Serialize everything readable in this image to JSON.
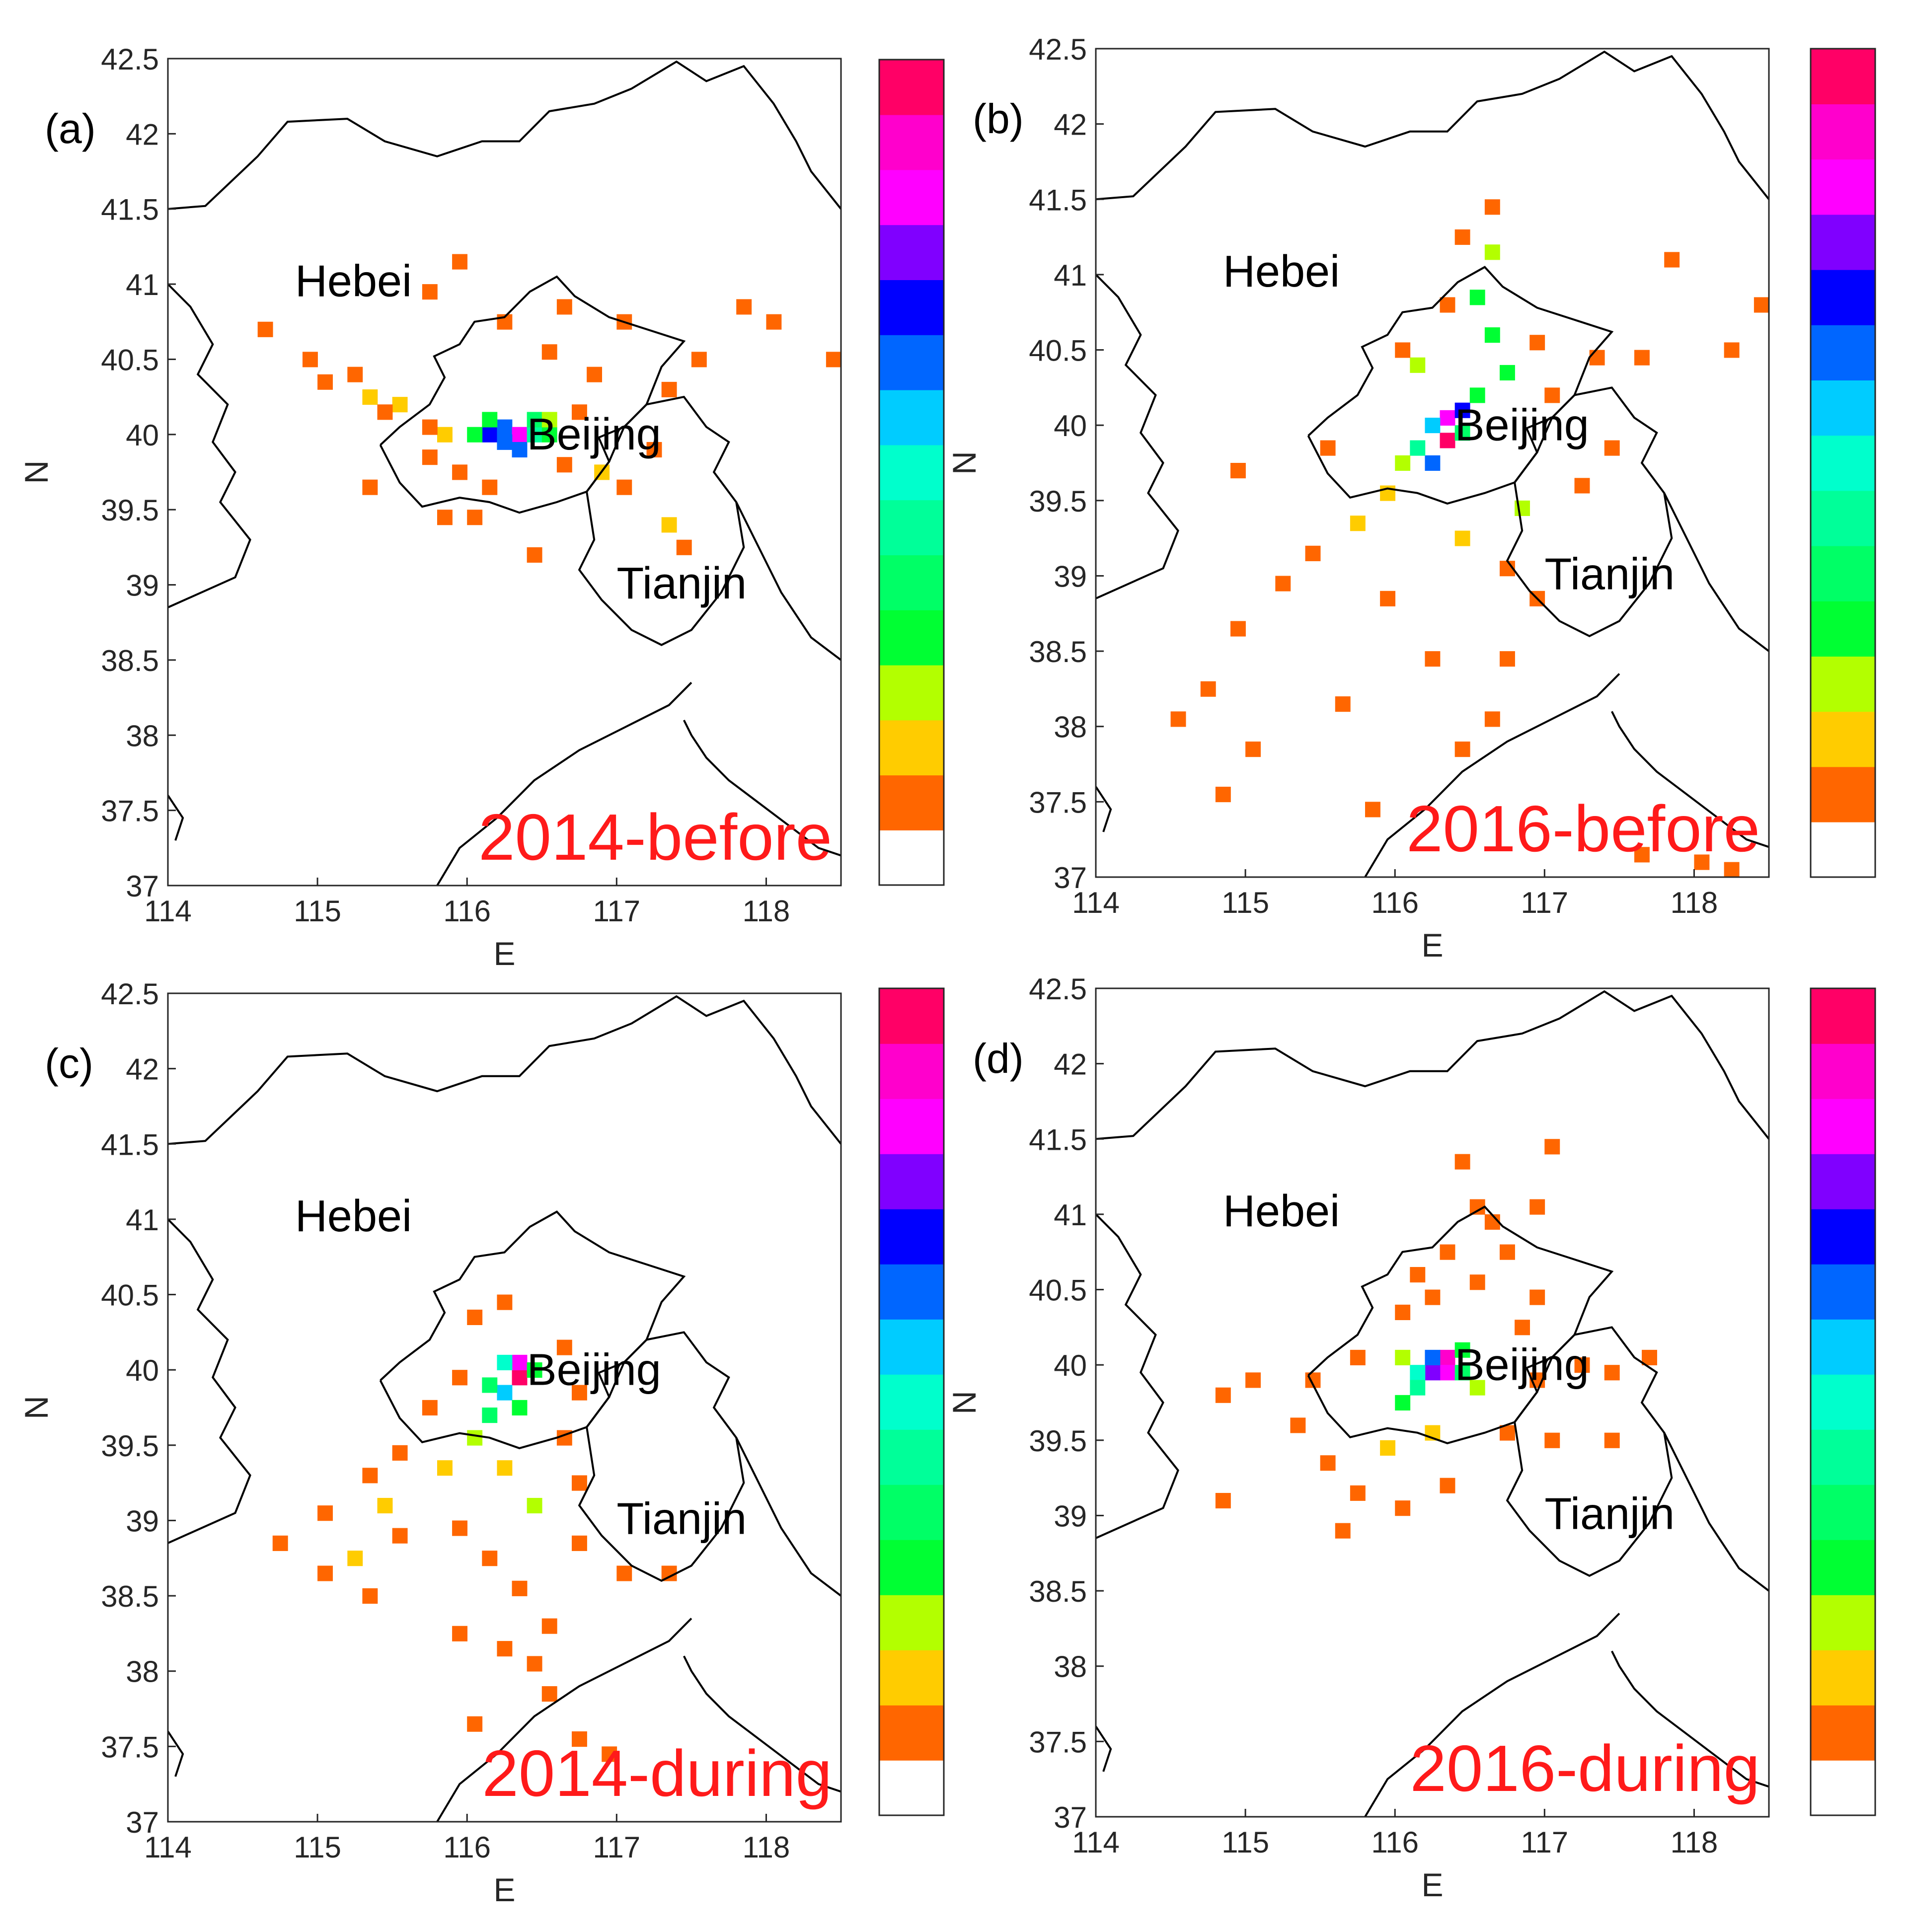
{
  "figure": {
    "xlabel": "E",
    "ylabel": "N",
    "x_ticks": [
      "114",
      "115",
      "116",
      "117",
      "118"
    ],
    "y_ticks": [
      "37",
      "37.5",
      "38",
      "38.5",
      "39",
      "39.5",
      "40",
      "40.5",
      "41",
      "41.5",
      "42",
      "42.5"
    ],
    "xlim": [
      114,
      118.5
    ],
    "ylim": [
      37,
      42.5
    ],
    "colorbar_colors": [
      "#ffffff",
      "#ff6600",
      "#ffcc00",
      "#b3ff00",
      "#00ff33",
      "#00ff66",
      "#00ff99",
      "#00ffcc",
      "#00ccff",
      "#0066ff",
      "#0000ff",
      "#8000ff",
      "#ff00ff",
      "#ff00cc",
      "#ff0066"
    ],
    "map_color": "#000000",
    "regions": [
      "Hebei",
      "Beijing",
      "Tianjin"
    ]
  },
  "panels": [
    {
      "letter": "(a)",
      "period_label": "2014-before",
      "grid_cells": [
        {
          "lon": 116.15,
          "lat": 40.0,
          "level": 10
        },
        {
          "lon": 116.25,
          "lat": 40.05,
          "level": 9
        },
        {
          "lon": 116.35,
          "lat": 40.0,
          "level": 12
        },
        {
          "lon": 116.25,
          "lat": 39.95,
          "level": 9
        },
        {
          "lon": 116.35,
          "lat": 39.9,
          "level": 9
        },
        {
          "lon": 116.45,
          "lat": 40.0,
          "level": 6
        },
        {
          "lon": 116.45,
          "lat": 40.1,
          "level": 5
        },
        {
          "lon": 116.55,
          "lat": 40.0,
          "level": 4
        },
        {
          "lon": 116.05,
          "lat": 40.0,
          "level": 4
        },
        {
          "lon": 116.15,
          "lat": 40.1,
          "level": 4
        },
        {
          "lon": 116.55,
          "lat": 40.1,
          "level": 3
        },
        {
          "lon": 115.85,
          "lat": 40.0,
          "level": 2
        },
        {
          "lon": 115.55,
          "lat": 40.2,
          "level": 2
        },
        {
          "lon": 115.35,
          "lat": 40.25,
          "level": 2
        },
        {
          "lon": 116.9,
          "lat": 39.75,
          "level": 2
        },
        {
          "lon": 117.35,
          "lat": 39.4,
          "level": 2
        },
        {
          "lon": 114.65,
          "lat": 40.7,
          "level": 1
        },
        {
          "lon": 114.95,
          "lat": 40.5,
          "level": 1
        },
        {
          "lon": 115.05,
          "lat": 40.35,
          "level": 1
        },
        {
          "lon": 115.25,
          "lat": 40.4,
          "level": 1
        },
        {
          "lon": 115.45,
          "lat": 40.15,
          "level": 1
        },
        {
          "lon": 115.75,
          "lat": 40.05,
          "level": 1
        },
        {
          "lon": 115.75,
          "lat": 39.85,
          "level": 1
        },
        {
          "lon": 115.95,
          "lat": 39.75,
          "level": 1
        },
        {
          "lon": 116.15,
          "lat": 39.65,
          "level": 1
        },
        {
          "lon": 116.65,
          "lat": 39.8,
          "level": 1
        },
        {
          "lon": 116.75,
          "lat": 40.15,
          "level": 1
        },
        {
          "lon": 116.85,
          "lat": 40.4,
          "level": 1
        },
        {
          "lon": 116.55,
          "lat": 40.55,
          "level": 1
        },
        {
          "lon": 116.65,
          "lat": 40.85,
          "level": 1
        },
        {
          "lon": 117.05,
          "lat": 40.75,
          "level": 1
        },
        {
          "lon": 117.35,
          "lat": 40.3,
          "level": 1
        },
        {
          "lon": 117.55,
          "lat": 40.5,
          "level": 1
        },
        {
          "lon": 117.85,
          "lat": 40.85,
          "level": 1
        },
        {
          "lon": 118.05,
          "lat": 40.75,
          "level": 1
        },
        {
          "lon": 118.45,
          "lat": 40.5,
          "level": 1
        },
        {
          "lon": 116.05,
          "lat": 39.45,
          "level": 1
        },
        {
          "lon": 115.85,
          "lat": 39.45,
          "level": 1
        },
        {
          "lon": 116.45,
          "lat": 39.2,
          "level": 1
        },
        {
          "lon": 117.45,
          "lat": 39.25,
          "level": 1
        },
        {
          "lon": 115.75,
          "lat": 40.95,
          "level": 1
        },
        {
          "lon": 115.95,
          "lat": 41.15,
          "level": 1
        },
        {
          "lon": 116.25,
          "lat": 40.75,
          "level": 1
        },
        {
          "lon": 115.35,
          "lat": 39.65,
          "level": 1
        },
        {
          "lon": 117.05,
          "lat": 39.65,
          "level": 1
        },
        {
          "lon": 117.25,
          "lat": 39.9,
          "level": 1
        }
      ]
    },
    {
      "letter": "(b)",
      "period_label": "2016-before",
      "grid_cells": [
        {
          "lon": 116.35,
          "lat": 40.05,
          "level": 12
        },
        {
          "lon": 116.35,
          "lat": 39.9,
          "level": 14
        },
        {
          "lon": 116.45,
          "lat": 40.1,
          "level": 10
        },
        {
          "lon": 116.25,
          "lat": 40.0,
          "level": 8
        },
        {
          "lon": 116.25,
          "lat": 39.75,
          "level": 9
        },
        {
          "lon": 116.15,
          "lat": 39.85,
          "level": 6
        },
        {
          "lon": 116.45,
          "lat": 39.95,
          "level": 5
        },
        {
          "lon": 116.55,
          "lat": 40.2,
          "level": 4
        },
        {
          "lon": 116.65,
          "lat": 40.6,
          "level": 4
        },
        {
          "lon": 116.55,
          "lat": 40.85,
          "level": 4
        },
        {
          "lon": 116.65,
          "lat": 41.15,
          "level": 3
        },
        {
          "lon": 116.75,
          "lat": 40.35,
          "level": 4
        },
        {
          "lon": 116.15,
          "lat": 40.4,
          "level": 3
        },
        {
          "lon": 116.05,
          "lat": 39.75,
          "level": 3
        },
        {
          "lon": 115.95,
          "lat": 39.55,
          "level": 2
        },
        {
          "lon": 116.85,
          "lat": 39.45,
          "level": 3
        },
        {
          "lon": 115.75,
          "lat": 39.35,
          "level": 2
        },
        {
          "lon": 116.45,
          "lat": 39.25,
          "level": 2
        },
        {
          "lon": 116.65,
          "lat": 41.45,
          "level": 1
        },
        {
          "lon": 116.45,
          "lat": 41.25,
          "level": 1
        },
        {
          "lon": 116.35,
          "lat": 40.8,
          "level": 1
        },
        {
          "lon": 116.05,
          "lat": 40.5,
          "level": 1
        },
        {
          "lon": 116.95,
          "lat": 40.55,
          "level": 1
        },
        {
          "lon": 117.05,
          "lat": 40.2,
          "level": 1
        },
        {
          "lon": 117.35,
          "lat": 40.45,
          "level": 1
        },
        {
          "lon": 117.65,
          "lat": 40.45,
          "level": 1
        },
        {
          "lon": 118.25,
          "lat": 40.5,
          "level": 1
        },
        {
          "lon": 118.45,
          "lat": 40.8,
          "level": 1
        },
        {
          "lon": 117.85,
          "lat": 41.1,
          "level": 1
        },
        {
          "lon": 117.45,
          "lat": 39.85,
          "level": 1
        },
        {
          "lon": 117.25,
          "lat": 39.6,
          "level": 1
        },
        {
          "lon": 116.75,
          "lat": 39.05,
          "level": 1
        },
        {
          "lon": 116.95,
          "lat": 38.85,
          "level": 1
        },
        {
          "lon": 116.75,
          "lat": 38.45,
          "level": 1
        },
        {
          "lon": 116.65,
          "lat": 38.05,
          "level": 1
        },
        {
          "lon": 116.45,
          "lat": 37.85,
          "level": 1
        },
        {
          "lon": 115.45,
          "lat": 39.15,
          "level": 1
        },
        {
          "lon": 115.25,
          "lat": 38.95,
          "level": 1
        },
        {
          "lon": 114.95,
          "lat": 38.65,
          "level": 1
        },
        {
          "lon": 114.75,
          "lat": 38.25,
          "level": 1
        },
        {
          "lon": 114.55,
          "lat": 38.05,
          "level": 1
        },
        {
          "lon": 114.85,
          "lat": 37.55,
          "level": 1
        },
        {
          "lon": 115.05,
          "lat": 37.85,
          "level": 1
        },
        {
          "lon": 115.95,
          "lat": 38.85,
          "level": 1
        },
        {
          "lon": 116.25,
          "lat": 38.45,
          "level": 1
        },
        {
          "lon": 115.85,
          "lat": 37.45,
          "level": 1
        },
        {
          "lon": 115.65,
          "lat": 38.15,
          "level": 1
        },
        {
          "lon": 114.95,
          "lat": 39.7,
          "level": 1
        },
        {
          "lon": 115.55,
          "lat": 39.85,
          "level": 1
        },
        {
          "lon": 118.25,
          "lat": 37.05,
          "level": 1
        },
        {
          "lon": 117.65,
          "lat": 37.15,
          "level": 1
        },
        {
          "lon": 118.05,
          "lat": 37.1,
          "level": 1
        }
      ]
    },
    {
      "letter": "(c)",
      "period_label": "2014-during",
      "grid_cells": [
        {
          "lon": 116.35,
          "lat": 39.95,
          "level": 14
        },
        {
          "lon": 116.35,
          "lat": 40.05,
          "level": 12
        },
        {
          "lon": 116.25,
          "lat": 40.05,
          "level": 7
        },
        {
          "lon": 116.25,
          "lat": 39.85,
          "level": 8
        },
        {
          "lon": 116.45,
          "lat": 40.0,
          "level": 4
        },
        {
          "lon": 116.15,
          "lat": 39.9,
          "level": 5
        },
        {
          "lon": 116.15,
          "lat": 39.7,
          "level": 5
        },
        {
          "lon": 116.35,
          "lat": 39.75,
          "level": 4
        },
        {
          "lon": 116.05,
          "lat": 39.55,
          "level": 3
        },
        {
          "lon": 115.85,
          "lat": 39.35,
          "level": 2
        },
        {
          "lon": 116.25,
          "lat": 39.35,
          "level": 2
        },
        {
          "lon": 116.45,
          "lat": 39.1,
          "level": 3
        },
        {
          "lon": 115.45,
          "lat": 39.1,
          "level": 2
        },
        {
          "lon": 115.25,
          "lat": 38.75,
          "level": 2
        },
        {
          "lon": 116.05,
          "lat": 40.35,
          "level": 1
        },
        {
          "lon": 116.25,
          "lat": 40.45,
          "level": 1
        },
        {
          "lon": 116.65,
          "lat": 40.15,
          "level": 1
        },
        {
          "lon": 116.75,
          "lat": 39.85,
          "level": 1
        },
        {
          "lon": 115.95,
          "lat": 39.95,
          "level": 1
        },
        {
          "lon": 115.75,
          "lat": 39.75,
          "level": 1
        },
        {
          "lon": 115.55,
          "lat": 39.45,
          "level": 1
        },
        {
          "lon": 115.35,
          "lat": 39.3,
          "level": 1
        },
        {
          "lon": 115.05,
          "lat": 39.05,
          "level": 1
        },
        {
          "lon": 115.05,
          "lat": 38.65,
          "level": 1
        },
        {
          "lon": 115.35,
          "lat": 38.5,
          "level": 1
        },
        {
          "lon": 115.55,
          "lat": 38.9,
          "level": 1
        },
        {
          "lon": 115.95,
          "lat": 38.95,
          "level": 1
        },
        {
          "lon": 116.15,
          "lat": 38.75,
          "level": 1
        },
        {
          "lon": 116.35,
          "lat": 38.55,
          "level": 1
        },
        {
          "lon": 116.55,
          "lat": 38.3,
          "level": 1
        },
        {
          "lon": 116.45,
          "lat": 38.05,
          "level": 1
        },
        {
          "lon": 116.55,
          "lat": 37.85,
          "level": 1
        },
        {
          "lon": 116.75,
          "lat": 37.55,
          "level": 1
        },
        {
          "lon": 116.95,
          "lat": 37.45,
          "level": 1
        },
        {
          "lon": 116.25,
          "lat": 38.15,
          "level": 1
        },
        {
          "lon": 115.95,
          "lat": 38.25,
          "level": 1
        },
        {
          "lon": 116.05,
          "lat": 37.65,
          "level": 1
        },
        {
          "lon": 116.75,
          "lat": 38.85,
          "level": 1
        },
        {
          "lon": 117.05,
          "lat": 38.65,
          "level": 1
        },
        {
          "lon": 117.35,
          "lat": 38.65,
          "level": 1
        },
        {
          "lon": 114.75,
          "lat": 38.85,
          "level": 1
        },
        {
          "lon": 116.75,
          "lat": 39.25,
          "level": 1
        },
        {
          "lon": 116.65,
          "lat": 39.55,
          "level": 1
        }
      ]
    },
    {
      "letter": "(d)",
      "period_label": "2016-during",
      "grid_cells": [
        {
          "lon": 116.35,
          "lat": 40.05,
          "level": 13
        },
        {
          "lon": 116.35,
          "lat": 39.95,
          "level": 12
        },
        {
          "lon": 116.25,
          "lat": 39.95,
          "level": 11
        },
        {
          "lon": 116.25,
          "lat": 40.05,
          "level": 9
        },
        {
          "lon": 116.15,
          "lat": 39.95,
          "level": 7
        },
        {
          "lon": 116.45,
          "lat": 39.95,
          "level": 5
        },
        {
          "lon": 116.15,
          "lat": 39.85,
          "level": 6
        },
        {
          "lon": 116.45,
          "lat": 40.1,
          "level": 4
        },
        {
          "lon": 116.05,
          "lat": 39.75,
          "level": 4
        },
        {
          "lon": 116.05,
          "lat": 40.05,
          "level": 3
        },
        {
          "lon": 116.55,
          "lat": 39.85,
          "level": 3
        },
        {
          "lon": 115.95,
          "lat": 39.45,
          "level": 2
        },
        {
          "lon": 116.25,
          "lat": 39.55,
          "level": 2
        },
        {
          "lon": 116.05,
          "lat": 40.35,
          "level": 1
        },
        {
          "lon": 116.25,
          "lat": 40.45,
          "level": 1
        },
        {
          "lon": 116.55,
          "lat": 40.55,
          "level": 1
        },
        {
          "lon": 116.75,
          "lat": 40.75,
          "level": 1
        },
        {
          "lon": 116.65,
          "lat": 40.95,
          "level": 1
        },
        {
          "lon": 116.35,
          "lat": 40.75,
          "level": 1
        },
        {
          "lon": 116.15,
          "lat": 40.6,
          "level": 1
        },
        {
          "lon": 115.75,
          "lat": 40.05,
          "level": 1
        },
        {
          "lon": 115.45,
          "lat": 39.9,
          "level": 1
        },
        {
          "lon": 115.05,
          "lat": 39.9,
          "level": 1
        },
        {
          "lon": 114.85,
          "lat": 39.8,
          "level": 1
        },
        {
          "lon": 115.35,
          "lat": 39.6,
          "level": 1
        },
        {
          "lon": 115.55,
          "lat": 39.35,
          "level": 1
        },
        {
          "lon": 115.75,
          "lat": 39.15,
          "level": 1
        },
        {
          "lon": 115.65,
          "lat": 38.9,
          "level": 1
        },
        {
          "lon": 116.05,
          "lat": 39.05,
          "level": 1
        },
        {
          "lon": 116.35,
          "lat": 39.2,
          "level": 1
        },
        {
          "lon": 116.75,
          "lat": 39.55,
          "level": 1
        },
        {
          "lon": 116.95,
          "lat": 39.9,
          "level": 1
        },
        {
          "lon": 117.25,
          "lat": 40.0,
          "level": 1
        },
        {
          "lon": 117.45,
          "lat": 39.95,
          "level": 1
        },
        {
          "lon": 117.7,
          "lat": 40.05,
          "level": 1
        },
        {
          "lon": 117.05,
          "lat": 39.5,
          "level": 1
        },
        {
          "lon": 117.45,
          "lat": 39.5,
          "level": 1
        },
        {
          "lon": 116.85,
          "lat": 40.25,
          "level": 1
        },
        {
          "lon": 116.45,
          "lat": 41.35,
          "level": 1
        },
        {
          "lon": 116.55,
          "lat": 41.05,
          "level": 1
        },
        {
          "lon": 117.05,
          "lat": 41.45,
          "level": 1
        },
        {
          "lon": 116.95,
          "lat": 41.05,
          "level": 1
        },
        {
          "lon": 116.95,
          "lat": 40.45,
          "level": 1
        },
        {
          "lon": 114.85,
          "lat": 39.1,
          "level": 1
        }
      ]
    }
  ]
}
